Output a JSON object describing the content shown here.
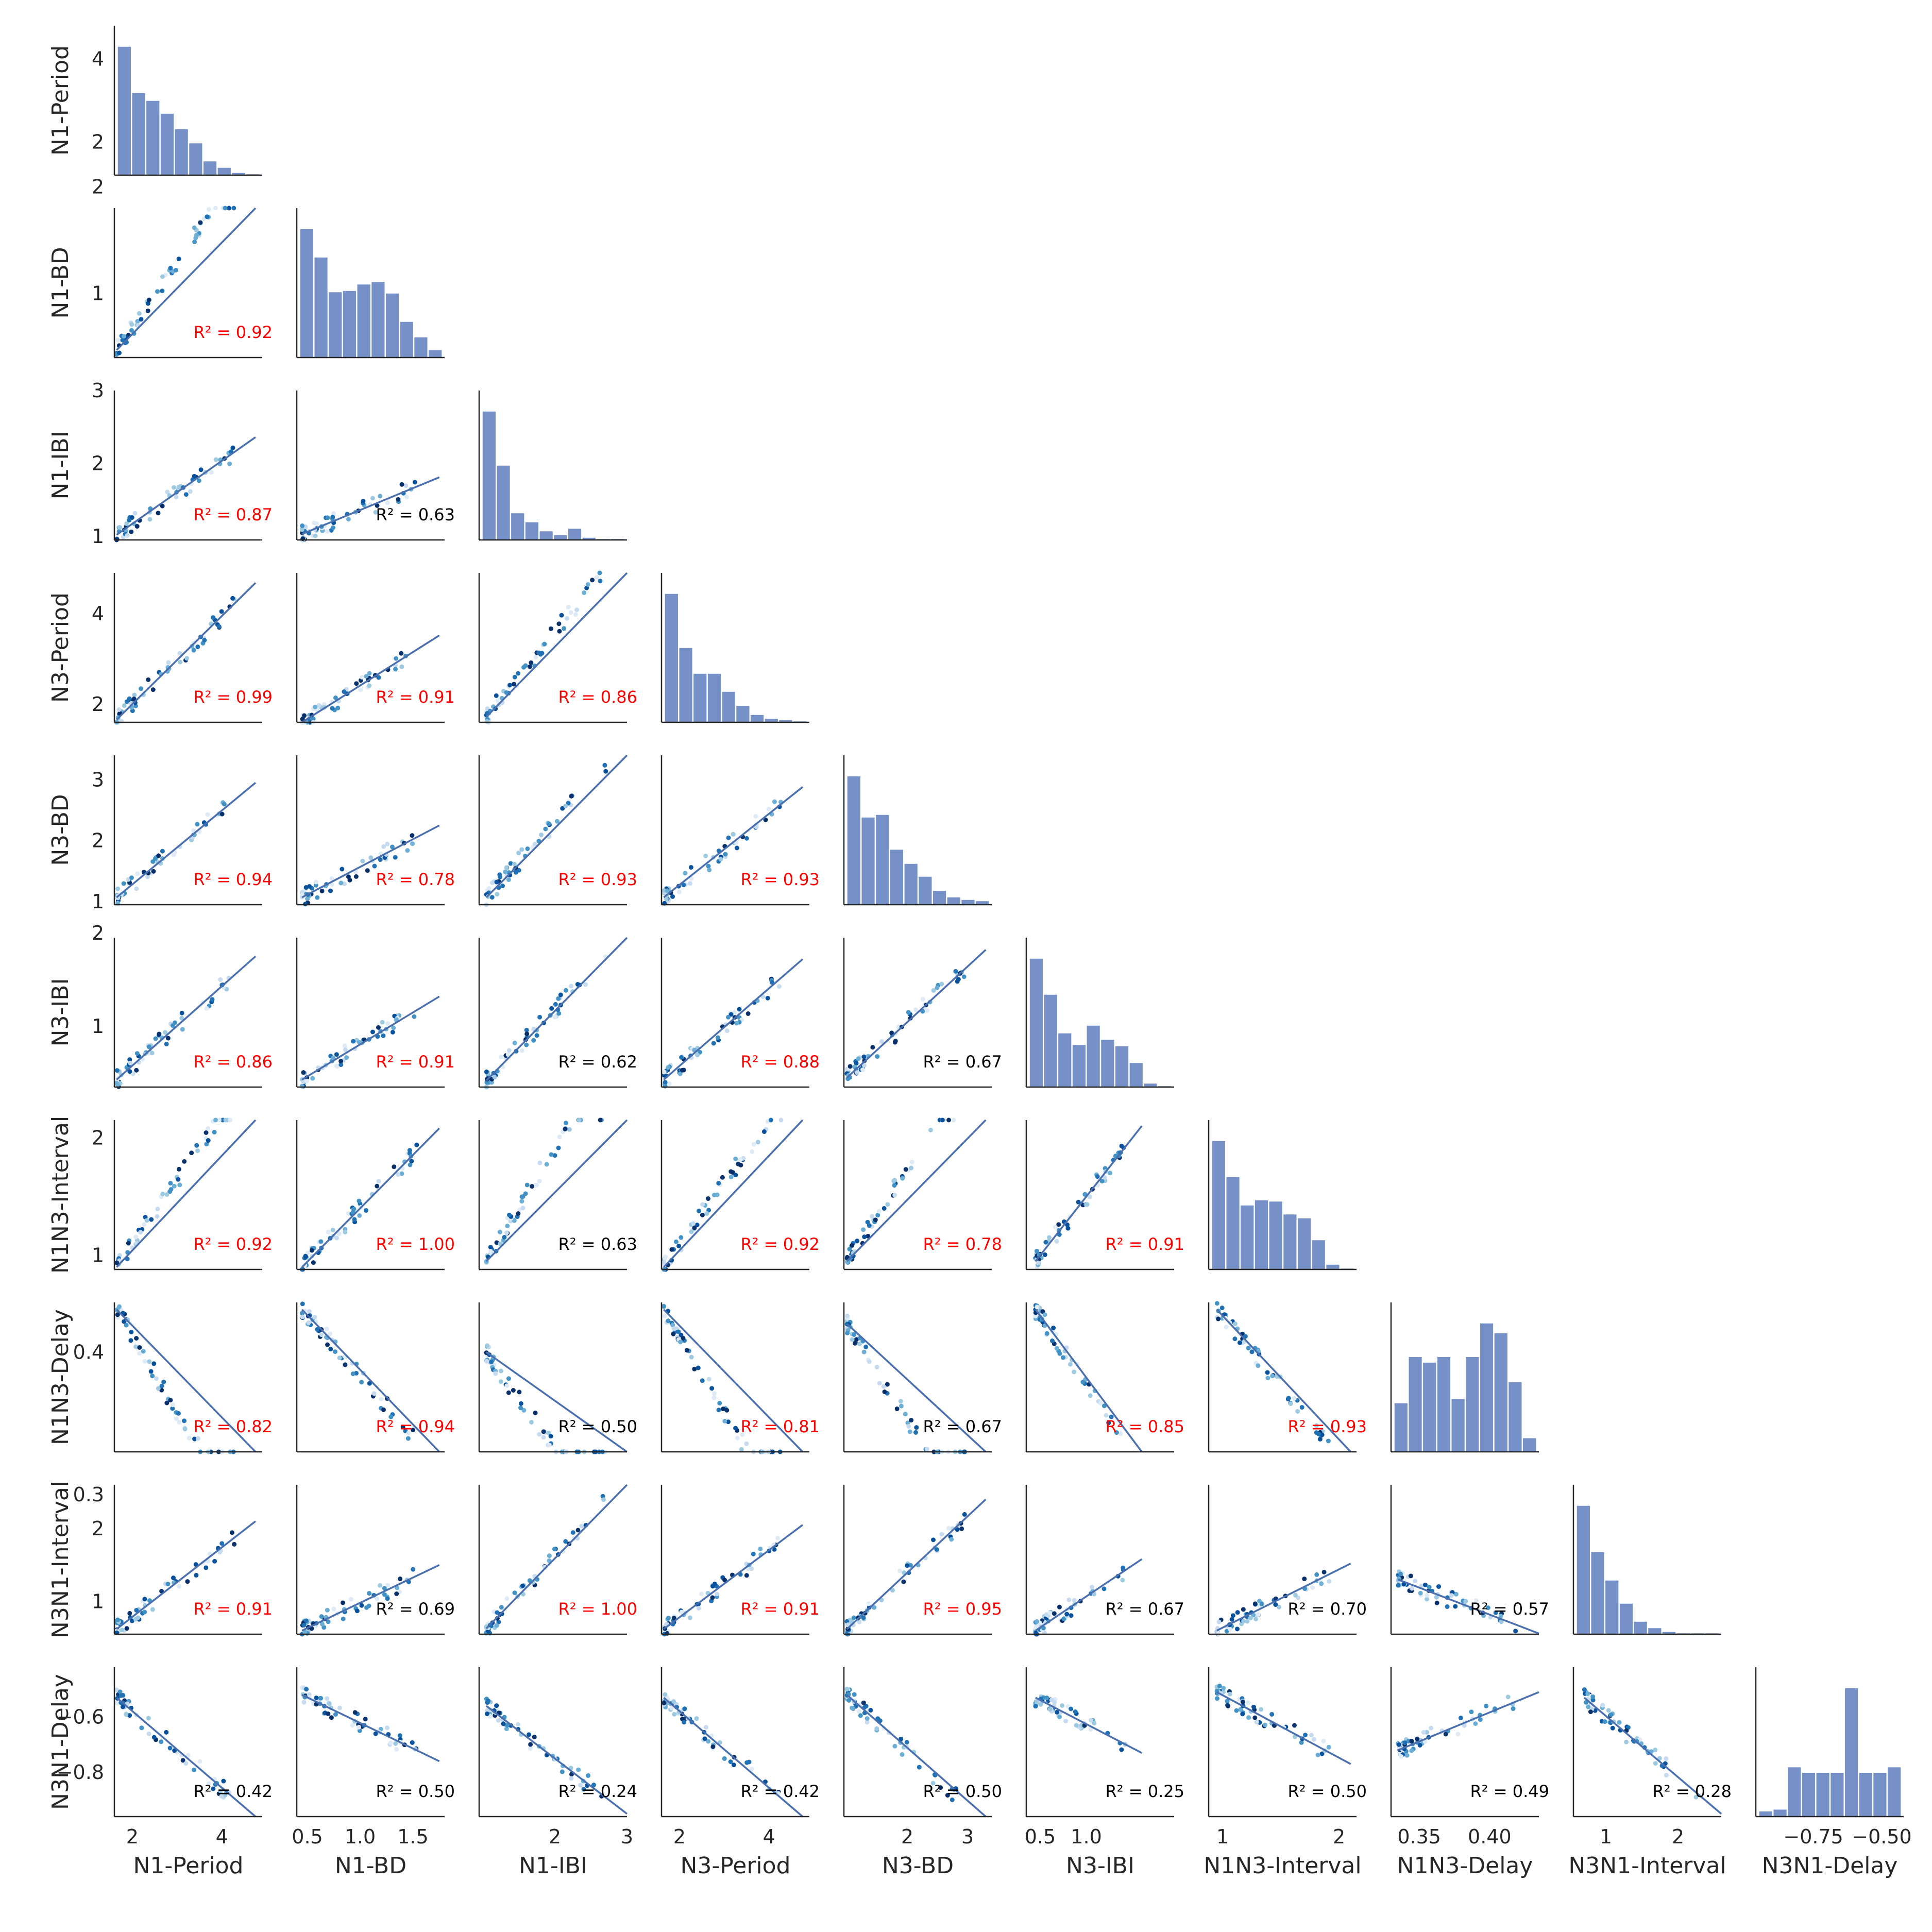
{
  "chart_data": {
    "type": "pairplot",
    "variables": [
      "N1-Period",
      "N1-BD",
      "N1-IBI",
      "N3-Period",
      "N3-BD",
      "N3-IBI",
      "N1N3-Interval",
      "N1N3-Delay",
      "N3N1-Interval",
      "N3N1-Delay"
    ],
    "axis_ranges": [
      [
        1.6,
        4.9
      ],
      [
        0.4,
        1.8
      ],
      [
        0.95,
        3.0
      ],
      [
        1.6,
        4.9
      ],
      [
        0.95,
        3.4
      ],
      [
        0.35,
        1.95
      ],
      [
        0.88,
        2.15
      ],
      [
        0.33,
        0.435
      ],
      [
        0.55,
        2.6
      ],
      [
        -0.96,
        -0.42
      ]
    ],
    "x_ticks": [
      [
        2,
        4
      ],
      [
        0.5,
        1.0,
        1.5
      ],
      [
        2,
        3
      ],
      [
        2,
        4
      ],
      [
        2,
        3
      ],
      [
        0.5,
        1.0
      ],
      [
        1,
        2
      ],
      [
        0.35,
        0.4
      ],
      [
        1,
        2
      ],
      [
        -0.75,
        -0.5
      ]
    ],
    "x_tick_labels": [
      [
        "2",
        "4"
      ],
      [
        "0.5",
        "1.0",
        "1.5"
      ],
      [
        "2",
        "3"
      ],
      [
        "2",
        "4"
      ],
      [
        "2",
        "3"
      ],
      [
        "0.5",
        "1.0"
      ],
      [
        "1",
        "2"
      ],
      [
        "0.35",
        "0.40"
      ],
      [
        "1",
        "2"
      ],
      [
        "−0.75",
        "−0.50"
      ]
    ],
    "y_ticks": [
      [
        2,
        4
      ],
      [
        1,
        2
      ],
      [
        1,
        2,
        3
      ],
      [
        2,
        4
      ],
      [
        1,
        2,
        3
      ],
      [
        1,
        2
      ],
      [
        1,
        2
      ],
      [
        0.3,
        0.4
      ],
      [
        1,
        2
      ],
      [
        -0.8,
        -0.6
      ]
    ],
    "y_tick_labels": [
      [
        "2",
        "4"
      ],
      [
        "1",
        "2"
      ],
      [
        "1",
        "2",
        "3"
      ],
      [
        "2",
        "4"
      ],
      [
        "1",
        "2",
        "3"
      ],
      [
        "1",
        "2"
      ],
      [
        "1",
        "2"
      ],
      [
        "0.3",
        "0.4"
      ],
      [
        "1",
        "2"
      ],
      [
        "−0.8",
        "−0.6"
      ]
    ],
    "diag_y_range": [
      1.2,
      4.8
    ],
    "histograms": [
      [
        100,
        64,
        58,
        48,
        36,
        25,
        11,
        6,
        2,
        1
      ],
      [
        100,
        78,
        51,
        52,
        57,
        59,
        50,
        28,
        16,
        6
      ],
      [
        100,
        58,
        21,
        14,
        7,
        4,
        9,
        2,
        1,
        1
      ],
      [
        100,
        58,
        38,
        38,
        24,
        13,
        6,
        3,
        2,
        1
      ],
      [
        100,
        68,
        70,
        43,
        32,
        22,
        11,
        6,
        4,
        3
      ],
      [
        100,
        72,
        42,
        33,
        48,
        37,
        32,
        19,
        3,
        1
      ],
      [
        100,
        72,
        50,
        54,
        53,
        43,
        40,
        23,
        4,
        1
      ],
      [
        35,
        68,
        64,
        68,
        38,
        68,
        92,
        85,
        50,
        10
      ],
      [
        100,
        64,
        42,
        24,
        10,
        5,
        2,
        1,
        1,
        1
      ],
      [
        3,
        4,
        27,
        24,
        24,
        24,
        70,
        24,
        24,
        27
      ]
    ],
    "r2_matrix": [
      [
        null,
        null,
        null,
        null,
        null,
        null,
        null,
        null,
        null
      ],
      [
        0.92,
        null,
        null,
        null,
        null,
        null,
        null,
        null,
        null
      ],
      [
        0.87,
        0.63,
        null,
        null,
        null,
        null,
        null,
        null,
        null
      ],
      [
        0.99,
        0.91,
        0.86,
        null,
        null,
        null,
        null,
        null,
        null
      ],
      [
        0.94,
        0.78,
        0.93,
        0.93,
        null,
        null,
        null,
        null,
        null
      ],
      [
        0.86,
        0.91,
        0.62,
        0.88,
        0.67,
        null,
        null,
        null,
        null
      ],
      [
        0.92,
        1.0,
        0.63,
        0.92,
        0.78,
        0.91,
        null,
        null,
        null
      ],
      [
        0.82,
        0.94,
        0.5,
        0.81,
        0.67,
        0.85,
        0.93,
        null,
        null
      ],
      [
        0.91,
        0.69,
        1.0,
        0.91,
        0.95,
        0.67,
        0.7,
        0.57,
        null
      ],
      [
        0.42,
        0.5,
        0.24,
        0.42,
        0.5,
        0.25,
        0.5,
        0.49,
        0.28
      ]
    ],
    "r2_text": [
      [
        null,
        null,
        null,
        null,
        null,
        null,
        null,
        null,
        null
      ],
      [
        "R² = 0.92",
        null,
        null,
        null,
        null,
        null,
        null,
        null,
        null
      ],
      [
        "R² = 0.87",
        "R² = 0.63",
        null,
        null,
        null,
        null,
        null,
        null,
        null
      ],
      [
        "R² = 0.99",
        "R² = 0.91",
        "R² = 0.86",
        null,
        null,
        null,
        null,
        null,
        null
      ],
      [
        "R² = 0.94",
        "R² = 0.78",
        "R² = 0.93",
        "R² = 0.93",
        null,
        null,
        null,
        null,
        null
      ],
      [
        "R² = 0.86",
        "R² = 0.91",
        "R² = 0.62",
        "R² = 0.88",
        "R² = 0.67",
        null,
        null,
        null,
        null
      ],
      [
        "R² = 0.92",
        "R² = 1.00",
        "R² = 0.63",
        "R² = 0.92",
        "R² = 0.78",
        "R² = 0.91",
        null,
        null,
        null
      ],
      [
        "R² = 0.82",
        "R² = 0.94",
        "R² = 0.50",
        "R² = 0.81",
        "R² = 0.67",
        "R² = 0.85",
        "R² = 0.93",
        null,
        null
      ],
      [
        "R² = 0.91",
        "R² = 0.69",
        "R² = 1.00",
        "R² = 0.91",
        "R² = 0.95",
        "R² = 0.67",
        "R² = 0.70",
        "R² = 0.57",
        null
      ],
      [
        "R² = 0.42",
        "R² = 0.50",
        "R² = 0.24",
        "R² = 0.42",
        "R² = 0.50",
        "R² = 0.25",
        "R² = 0.50",
        "R² = 0.49",
        "R² = 0.28"
      ]
    ],
    "r2_highlight_threshold": 0.75,
    "regression_lines": {
      "1_0": [
        [
          1.65,
          0.47
        ],
        [
          4.75,
          2.37
        ]
      ],
      "2_0": [
        [
          1.65,
          1.02
        ],
        [
          4.75,
          2.36
        ]
      ],
      "2_1": [
        [
          0.45,
          1.03
        ],
        [
          1.75,
          1.81
        ]
      ],
      "3_0": [
        [
          1.65,
          1.66
        ],
        [
          4.75,
          4.68
        ]
      ],
      "3_1": [
        [
          0.45,
          1.6
        ],
        [
          1.75,
          3.52
        ]
      ],
      "3_2": [
        [
          1.05,
          1.72
        ],
        [
          3.0,
          5.58
        ]
      ],
      "4_0": [
        [
          1.65,
          1.07
        ],
        [
          4.75,
          2.95
        ]
      ],
      "4_1": [
        [
          0.45,
          1.07
        ],
        [
          1.75,
          2.25
        ]
      ],
      "4_2": [
        [
          1.05,
          1.07
        ],
        [
          3.0,
          3.62
        ]
      ],
      "4_3": [
        [
          1.65,
          1.07
        ],
        [
          4.75,
          2.88
        ]
      ],
      "5_0": [
        [
          1.65,
          0.43
        ],
        [
          4.75,
          1.75
        ]
      ],
      "5_1": [
        [
          0.45,
          0.43
        ],
        [
          1.75,
          1.32
        ]
      ],
      "5_2": [
        [
          1.05,
          0.42
        ],
        [
          3.0,
          1.98
        ]
      ],
      "5_3": [
        [
          1.65,
          0.43
        ],
        [
          4.75,
          1.72
        ]
      ],
      "5_4": [
        [
          1.0,
          0.45
        ],
        [
          3.3,
          1.82
        ]
      ],
      "6_0": [
        [
          1.65,
          0.9
        ],
        [
          4.75,
          2.6
        ]
      ],
      "6_1": [
        [
          0.45,
          0.9
        ],
        [
          1.75,
          2.08
        ]
      ],
      "6_2": [
        [
          1.05,
          0.95
        ],
        [
          3.0,
          2.95
        ]
      ],
      "6_3": [
        [
          1.65,
          0.9
        ],
        [
          4.75,
          2.55
        ]
      ],
      "6_4": [
        [
          1.0,
          0.95
        ],
        [
          3.3,
          2.8
        ]
      ],
      "6_5": [
        [
          0.45,
          0.95
        ],
        [
          1.6,
          2.1
        ]
      ],
      "7_0": [
        [
          1.65,
          0.43
        ],
        [
          4.75,
          0.265
        ]
      ],
      "7_1": [
        [
          0.45,
          0.43
        ],
        [
          1.75,
          0.32
        ]
      ],
      "7_2": [
        [
          1.05,
          0.4
        ],
        [
          3.0,
          0.26
        ]
      ],
      "7_3": [
        [
          1.65,
          0.43
        ],
        [
          4.75,
          0.265
        ]
      ],
      "7_4": [
        [
          1.0,
          0.42
        ],
        [
          3.3,
          0.265
        ]
      ],
      "7_5": [
        [
          0.45,
          0.43
        ],
        [
          1.6,
          0.32
        ]
      ],
      "7_6": [
        [
          0.95,
          0.43
        ],
        [
          2.1,
          0.32
        ]
      ],
      "8_0": [
        [
          1.65,
          0.62
        ],
        [
          4.75,
          2.1
        ]
      ],
      "8_1": [
        [
          0.45,
          0.6
        ],
        [
          1.75,
          1.5
        ]
      ],
      "8_2": [
        [
          1.05,
          0.63
        ],
        [
          3.0,
          2.7
        ]
      ],
      "8_3": [
        [
          1.65,
          0.62
        ],
        [
          4.75,
          2.05
        ]
      ],
      "8_4": [
        [
          1.0,
          0.62
        ],
        [
          3.3,
          2.4
        ]
      ],
      "8_5": [
        [
          0.45,
          0.6
        ],
        [
          1.6,
          1.58
        ]
      ],
      "8_6": [
        [
          0.95,
          0.6
        ],
        [
          2.1,
          1.52
        ]
      ],
      "8_7": [
        [
          0.335,
          1.3
        ],
        [
          0.435,
          0.56
        ]
      ],
      "9_0": [
        [
          1.65,
          -0.53
        ],
        [
          4.75,
          -0.96
        ]
      ],
      "9_1": [
        [
          0.45,
          -0.52
        ],
        [
          1.75,
          -0.76
        ]
      ],
      "9_2": [
        [
          1.05,
          -0.56
        ],
        [
          3.0,
          -0.95
        ]
      ],
      "9_3": [
        [
          1.65,
          -0.53
        ],
        [
          4.75,
          -0.96
        ]
      ],
      "9_4": [
        [
          1.0,
          -0.52
        ],
        [
          3.3,
          -0.99
        ]
      ],
      "9_5": [
        [
          0.45,
          -0.53
        ],
        [
          1.6,
          -0.73
        ]
      ],
      "9_6": [
        [
          0.95,
          -0.51
        ],
        [
          2.1,
          -0.77
        ]
      ],
      "9_7": [
        [
          0.335,
          -0.72
        ],
        [
          0.435,
          -0.51
        ]
      ],
      "9_8": [
        [
          0.7,
          -0.53
        ],
        [
          2.6,
          -0.95
        ]
      ]
    },
    "point_colors": [
      "#deebf7",
      "#c6dbef",
      "#9ecae1",
      "#6baed6",
      "#4292c6",
      "#2171b5",
      "#08519c",
      "#08306b"
    ],
    "line_color": "#4a6fae",
    "hist_color": "#7691c8"
  }
}
